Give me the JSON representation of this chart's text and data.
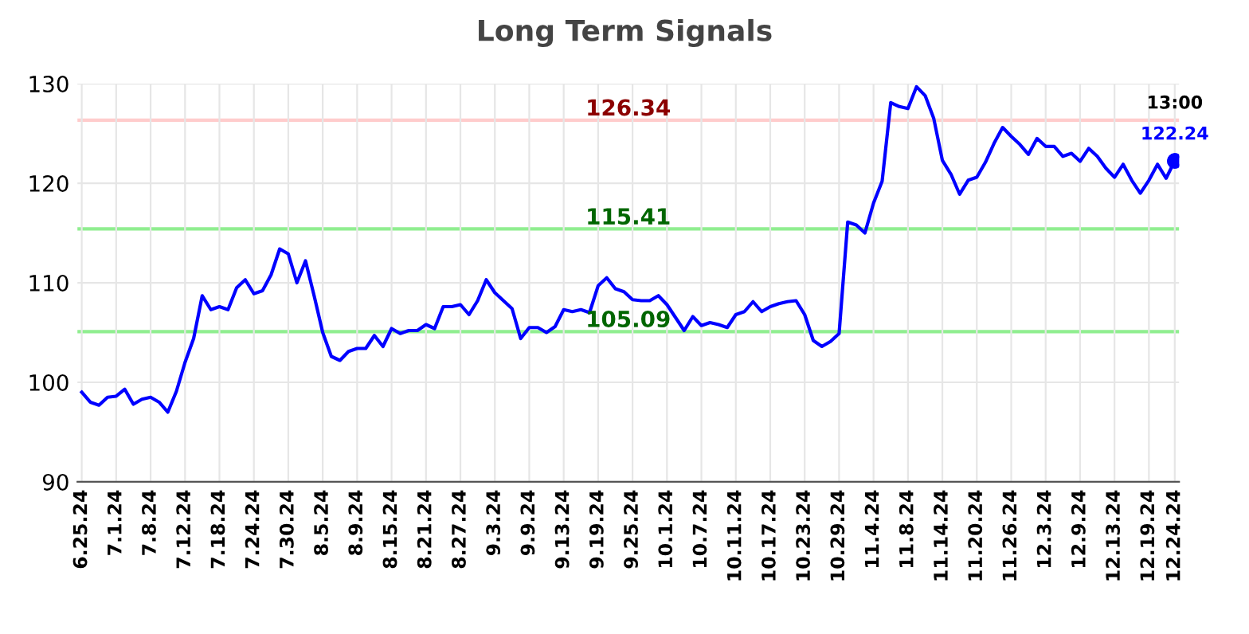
{
  "chart_data": {
    "type": "line",
    "title": "Long Term Signals",
    "categories": [
      "6.25.24",
      null,
      null,
      null,
      "7.1.24",
      null,
      null,
      null,
      "7.8.24",
      null,
      null,
      null,
      "7.12.24",
      null,
      null,
      null,
      "7.18.24",
      null,
      null,
      null,
      "7.24.24",
      null,
      null,
      null,
      "7.30.24",
      null,
      null,
      null,
      "8.5.24",
      null,
      null,
      null,
      "8.9.24",
      null,
      null,
      null,
      "8.15.24",
      null,
      null,
      null,
      "8.21.24",
      null,
      null,
      null,
      "8.27.24",
      null,
      null,
      null,
      "9.3.24",
      null,
      null,
      null,
      "9.9.24",
      null,
      null,
      null,
      "9.13.24",
      null,
      null,
      null,
      "9.19.24",
      null,
      null,
      null,
      "9.25.24",
      null,
      null,
      null,
      "10.1.24",
      null,
      null,
      null,
      "10.7.24",
      null,
      null,
      null,
      "10.11.24",
      null,
      null,
      null,
      "10.17.24",
      null,
      null,
      null,
      "10.23.24",
      null,
      null,
      null,
      "10.29.24",
      null,
      null,
      null,
      "11.4.24",
      null,
      null,
      null,
      "11.8.24",
      null,
      null,
      null,
      "11.14.24",
      null,
      null,
      null,
      "11.20.24",
      null,
      null,
      null,
      "11.26.24",
      null,
      null,
      null,
      "12.3.24",
      null,
      null,
      null,
      "12.9.24",
      null,
      null,
      null,
      "12.13.24",
      null,
      null,
      null,
      "12.19.24",
      null,
      null,
      "12.24.24"
    ],
    "series": [
      {
        "color": "#0000ff",
        "values": [
          99.0,
          98.0,
          97.7,
          98.5,
          98.6,
          99.3,
          97.8,
          98.3,
          98.5,
          98.0,
          97.0,
          99.1,
          102.0,
          104.4,
          108.7,
          107.3,
          107.6,
          107.3,
          109.5,
          110.3,
          108.9,
          109.2,
          110.8,
          113.4,
          112.9,
          110.0,
          112.2,
          108.7,
          105.0,
          102.6,
          102.2,
          103.1,
          103.4,
          103.4,
          104.7,
          103.6,
          105.4,
          104.9,
          105.2,
          105.2,
          105.8,
          105.4,
          107.6,
          107.6,
          107.8,
          106.8,
          108.2,
          110.3,
          109.0,
          108.2,
          107.4,
          104.4,
          105.5,
          105.5,
          105.0,
          105.6,
          107.3,
          107.1,
          107.3,
          107.0,
          109.7,
          110.5,
          109.4,
          109.1,
          108.3,
          108.2,
          108.2,
          108.7,
          107.8,
          106.5,
          105.2,
          106.6,
          105.7,
          106.0,
          105.8,
          105.5,
          106.8,
          107.1,
          108.1,
          107.1,
          107.6,
          107.9,
          108.1,
          108.2,
          106.8,
          104.2,
          103.6,
          104.1,
          104.9,
          116.1,
          115.8,
          115.0,
          118.0,
          120.2,
          128.1,
          127.7,
          127.5,
          129.7,
          128.8,
          126.5,
          122.3,
          120.9,
          118.9,
          120.3,
          120.6,
          122.1,
          124.0,
          125.6,
          124.7,
          123.9,
          122.9,
          124.5,
          123.7,
          123.7,
          122.7,
          123.0,
          122.2,
          123.5,
          122.7,
          121.5,
          120.6,
          121.9,
          120.3,
          119.0,
          120.3,
          121.9,
          120.5,
          122.24
        ]
      }
    ],
    "ylim": [
      90,
      130
    ],
    "yticks": [
      90,
      100,
      110,
      120,
      130
    ],
    "grid": true,
    "marker": "none",
    "line_style": "solid",
    "ref_lines": [
      {
        "axis": "y",
        "value": 126.34,
        "label": "126.34",
        "color": "#ffcccc"
      },
      {
        "axis": "y",
        "value": 115.41,
        "label": "115.41",
        "color": "#90ee90"
      },
      {
        "axis": "y",
        "value": 105.09,
        "label": "105.09",
        "color": "#90ee90"
      }
    ],
    "annotations": [
      {
        "text": "13:00",
        "x": "12.24.24",
        "y": 122.24
      },
      {
        "text": "122.24",
        "x": "12.24.24",
        "y": 122.24
      }
    ]
  }
}
